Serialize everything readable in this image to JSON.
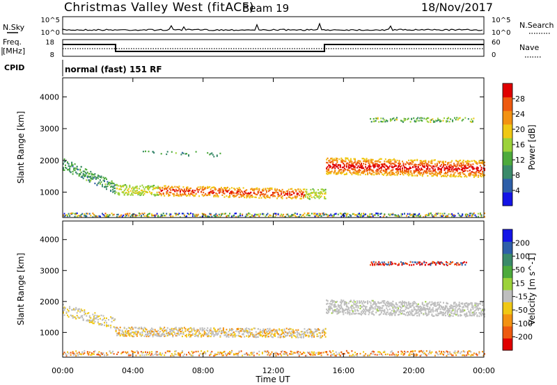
{
  "header": {
    "title": "Christmas Valley West (fitACF)",
    "beam": "Beam 19",
    "date": "18/Nov/2017"
  },
  "status_panels": {
    "nsky_label": "N.Sky",
    "nsearch_label": "N.Search",
    "nsky_ticks": [
      "10^5",
      "10^0"
    ],
    "freq_label_1": "Freq.",
    "freq_label_2": "[MHz]",
    "freq_ticks": [
      "18",
      "8"
    ],
    "nave_label": "Nave",
    "nave_ticks": [
      "60",
      "0"
    ],
    "cpid_label": "CPID",
    "cpid_value": "normal (fast) 151 RF"
  },
  "colors": {
    "power_scale": [
      "#1414e6",
      "#2e5fa8",
      "#3a8a6a",
      "#4daa3c",
      "#9cd23a",
      "#f0c814",
      "#f39212",
      "#ee5a10",
      "#e00000"
    ],
    "velocity_scale": [
      "#e00000",
      "#ee5a10",
      "#f39212",
      "#f0c814",
      "#bebebe",
      "#9cd23a",
      "#4daa3c",
      "#3a8a6a",
      "#2e5fa8",
      "#1414e6"
    ],
    "ground_scatter": "#bebebe"
  },
  "chart_data": [
    {
      "type": "heatmap",
      "name": "Power range-time",
      "xlabel": "Time UT",
      "ylabel": "Slant Range [km]",
      "x_ticks": [
        "00:00",
        "04:00",
        "08:00",
        "12:00",
        "16:00",
        "20:00",
        "00:00"
      ],
      "xlim_hours": [
        0,
        24
      ],
      "y_ticks": [
        1000,
        2000,
        3000,
        4000
      ],
      "ylim": [
        200,
        4600
      ],
      "colorbar_label": "Power [dB]",
      "colorbar_ticks": [
        4,
        8,
        12,
        16,
        20,
        24,
        28
      ],
      "colorbar_range": [
        0,
        30
      ],
      "features": [
        {
          "name": "morning E-region",
          "t_start": 0.0,
          "t_end": 3.0,
          "range_start": 2000,
          "range_end": 1100,
          "power": 12
        },
        {
          "name": "daytime scatter",
          "t_start": 3.0,
          "t_end": 15.0,
          "range_start": 1100,
          "range_end": 950,
          "peak_power": 26
        },
        {
          "name": "evening scatter",
          "t_start": 15.0,
          "t_end": 24.0,
          "range_start": 1900,
          "range_mid": 1400,
          "range_end": 1800,
          "peak_power": 28
        },
        {
          "name": "far range band",
          "t_start": 17.5,
          "t_end": 23.5,
          "range": 3300,
          "power": 14
        },
        {
          "name": "near range clutter",
          "t_start": 0.0,
          "t_end": 24.0,
          "range": 300,
          "power": 10
        }
      ]
    },
    {
      "type": "heatmap",
      "name": "Velocity range-time",
      "xlabel": "Time UT",
      "ylabel": "Slant Range [km]",
      "x_ticks": [
        "00:00",
        "04:00",
        "08:00",
        "12:00",
        "16:00",
        "20:00",
        "00:00"
      ],
      "xlim_hours": [
        0,
        24
      ],
      "y_ticks": [
        1000,
        2000,
        3000,
        4000
      ],
      "ylim": [
        200,
        4600
      ],
      "colorbar_label": "Velocity [m s^-1]",
      "colorbar_ticks": [
        "200",
        "100",
        "50",
        "15",
        "-15",
        "-50",
        "-100",
        "-200"
      ],
      "features": [
        {
          "name": "daytime ground scatter",
          "t_start": 3.0,
          "t_end": 15.0,
          "range": 1000,
          "velocity": 0
        },
        {
          "name": "daytime ionospheric",
          "t_start": 3.0,
          "t_end": 13.0,
          "range": 1050,
          "velocity": -40
        },
        {
          "name": "evening ground scatter",
          "t_start": 15.0,
          "t_end": 24.0,
          "range": 1800,
          "velocity": 0
        },
        {
          "name": "far range receding",
          "t_start": 17.5,
          "t_end": 23.0,
          "range": 3250,
          "velocity": -150
        },
        {
          "name": "near range flow",
          "t_start": 0.0,
          "t_end": 24.0,
          "range": 350,
          "velocity": -60
        }
      ]
    }
  ]
}
